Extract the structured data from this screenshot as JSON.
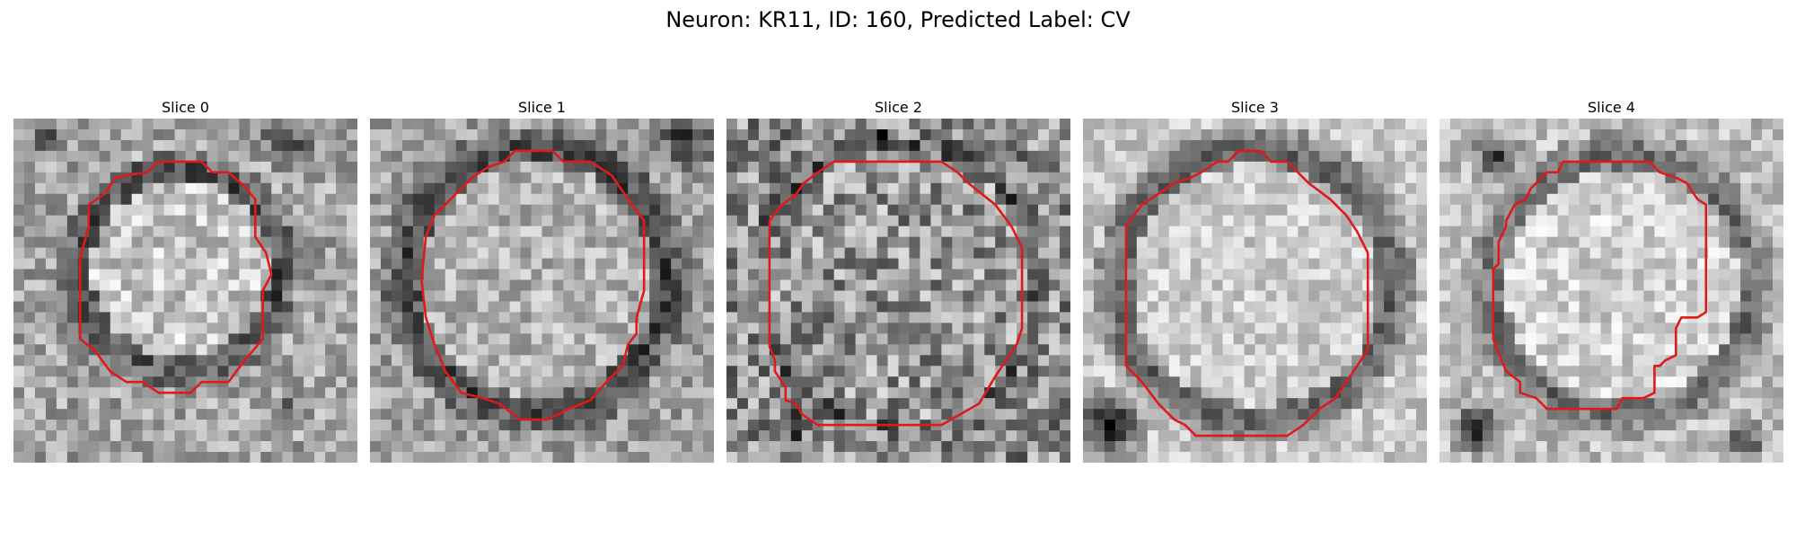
{
  "figure": {
    "title": "Neuron: KR11, ID: 160, Predicted Label: CV"
  },
  "colors": {
    "contour": "#e01a1a",
    "background": "#ffffff"
  },
  "panels": [
    {
      "label": "Slice 0",
      "image": "grayscale-microscopy-slice",
      "overlay": "red-cell-contour"
    },
    {
      "label": "Slice 1",
      "image": "grayscale-microscopy-slice",
      "overlay": "red-cell-contour"
    },
    {
      "label": "Slice 2",
      "image": "grayscale-microscopy-slice",
      "overlay": "red-cell-contour"
    },
    {
      "label": "Slice 3",
      "image": "grayscale-microscopy-slice",
      "overlay": "red-cell-contour"
    },
    {
      "label": "Slice 4",
      "image": "grayscale-microscopy-slice",
      "overlay": "red-cell-contour"
    }
  ]
}
